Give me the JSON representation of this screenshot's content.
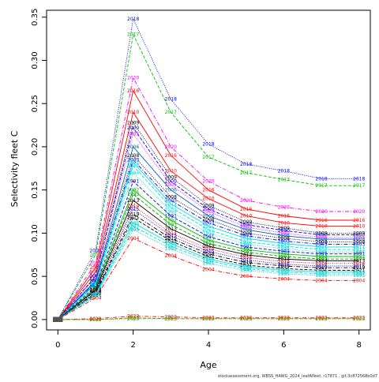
{
  "chart_data": {
    "type": "line",
    "xlabel": "Age",
    "ylabel": "Selectivity fleet C",
    "xlim": [
      -0.3,
      8.3
    ],
    "ylim": [
      -0.012,
      0.358
    ],
    "x": [
      0,
      1,
      2,
      3,
      4,
      5,
      6,
      7,
      8
    ],
    "x_ticks": [
      0,
      2,
      4,
      6,
      8
    ],
    "y_ticks": [
      0.0,
      0.05,
      0.1,
      0.15,
      0.2,
      0.25,
      0.3,
      0.35
    ],
    "y_tick_labels": [
      "0.00",
      "0.05",
      "0.10",
      "0.15",
      "0.20",
      "0.25",
      "0.30",
      "0.35"
    ],
    "grid": false,
    "legend": "none",
    "series": [
      {
        "name": "2018",
        "color": "#0000ff",
        "dash": "1,1.5",
        "values": [
          0.0,
          0.08,
          0.348,
          0.255,
          0.203,
          0.18,
          0.172,
          0.163,
          0.163
        ]
      },
      {
        "name": "2017",
        "color": "#00c000",
        "dash": "4,2",
        "values": [
          0.0,
          0.075,
          0.33,
          0.24,
          0.188,
          0.17,
          0.162,
          0.155,
          0.155
        ]
      },
      {
        "name": "2020",
        "color": "#ff00ff",
        "dash": "5,2,1,2",
        "values": [
          0.0,
          0.065,
          0.28,
          0.2,
          0.16,
          0.138,
          0.13,
          0.125,
          0.125
        ]
      },
      {
        "name": "2016",
        "color": "#ff0000",
        "dash": "",
        "values": [
          0.0,
          0.06,
          0.265,
          0.19,
          0.15,
          0.128,
          0.12,
          0.115,
          0.115
        ]
      },
      {
        "name": "2010",
        "color": "#ff0000",
        "dash": "",
        "values": [
          0.0,
          0.055,
          0.24,
          0.172,
          0.14,
          0.12,
          0.112,
          0.108,
          0.108
        ]
      },
      {
        "name": "2009",
        "color": "#000000",
        "dash": "1,1.5",
        "values": [
          0.0,
          0.05,
          0.228,
          0.165,
          0.132,
          0.113,
          0.106,
          0.1,
          0.1
        ]
      },
      {
        "name": "2000",
        "color": "#0000ff",
        "dash": "4,2",
        "values": [
          0.0,
          0.05,
          0.222,
          0.16,
          0.128,
          0.11,
          0.103,
          0.098,
          0.098
        ]
      },
      {
        "name": "2005",
        "color": "#ff00ff",
        "dash": "1,1.5",
        "values": [
          0.0,
          0.048,
          0.215,
          0.156,
          0.125,
          0.107,
          0.1,
          0.095,
          0.095
        ]
      },
      {
        "name": "2006",
        "color": "#0060c0",
        "dash": "",
        "values": [
          0.0,
          0.045,
          0.2,
          0.15,
          0.12,
          0.104,
          0.097,
          0.093,
          0.093
        ]
      },
      {
        "name": "2008",
        "color": "#000000",
        "dash": "1,1.5",
        "values": [
          0.0,
          0.044,
          0.19,
          0.142,
          0.116,
          0.1,
          0.094,
          0.09,
          0.09
        ]
      },
      {
        "name": "2003",
        "color": "#0000ff",
        "dash": "5,2,1,2",
        "values": [
          0.0,
          0.043,
          0.185,
          0.138,
          0.112,
          0.097,
          0.091,
          0.087,
          0.087
        ]
      },
      {
        "name": "2011",
        "color": "#00e0e0",
        "dash": "",
        "values": [
          0.0,
          0.042,
          0.182,
          0.134,
          0.108,
          0.094,
          0.088,
          0.084,
          0.084
        ]
      },
      {
        "name": "2012",
        "color": "#00e0e0",
        "dash": "4,2",
        "values": [
          0.0,
          0.041,
          0.178,
          0.13,
          0.104,
          0.09,
          0.085,
          0.081,
          0.081
        ]
      },
      {
        "name": "1994",
        "color": "#00e0e0",
        "dash": "1,1.5",
        "values": [
          0.0,
          0.04,
          0.17,
          0.125,
          0.1,
          0.087,
          0.082,
          0.078,
          0.078
        ]
      },
      {
        "name": "1991",
        "color": "#0000ff",
        "dash": "4,2",
        "values": [
          0.0,
          0.038,
          0.16,
          0.12,
          0.096,
          0.084,
          0.079,
          0.076,
          0.076
        ]
      },
      {
        "name": "1992",
        "color": "#00c000",
        "dash": "",
        "values": [
          0.0,
          0.036,
          0.15,
          0.115,
          0.092,
          0.081,
          0.076,
          0.073,
          0.073
        ]
      },
      {
        "name": "1993",
        "color": "#00a000",
        "dash": "4,2",
        "values": [
          0.0,
          0.035,
          0.145,
          0.11,
          0.088,
          0.078,
          0.073,
          0.07,
          0.07
        ]
      },
      {
        "name": "2013",
        "color": "#000000",
        "dash": "",
        "values": [
          0.0,
          0.034,
          0.138,
          0.105,
          0.085,
          0.075,
          0.07,
          0.068,
          0.068
        ]
      },
      {
        "name": "2014",
        "color": "#ff0000",
        "dash": "1,1.5",
        "values": [
          0.0,
          0.033,
          0.132,
          0.1,
          0.082,
          0.072,
          0.067,
          0.065,
          0.065
        ]
      },
      {
        "name": "2015",
        "color": "#0000ff",
        "dash": "1,1.5",
        "values": [
          0.0,
          0.032,
          0.128,
          0.097,
          0.079,
          0.069,
          0.064,
          0.062,
          0.062
        ]
      },
      {
        "name": "2019",
        "color": "#000000",
        "dash": "5,2,1,2",
        "values": [
          0.0,
          0.031,
          0.122,
          0.094,
          0.076,
          0.066,
          0.062,
          0.06,
          0.06
        ]
      },
      {
        "name": "2021",
        "color": "#000000",
        "dash": "4,2",
        "values": [
          0.0,
          0.03,
          0.118,
          0.091,
          0.073,
          0.063,
          0.059,
          0.057,
          0.057
        ]
      },
      {
        "name": "1996",
        "color": "#00e0e0",
        "dash": "",
        "values": [
          0.0,
          0.029,
          0.112,
          0.088,
          0.07,
          0.061,
          0.057,
          0.055,
          0.055
        ]
      },
      {
        "name": "1997",
        "color": "#00e0e0",
        "dash": "4,2",
        "values": [
          0.0,
          0.028,
          0.108,
          0.085,
          0.068,
          0.059,
          0.055,
          0.053,
          0.053
        ]
      },
      {
        "name": "1995",
        "color": "#00c0c0",
        "dash": "1,1.5",
        "values": [
          0.0,
          0.027,
          0.104,
          0.082,
          0.065,
          0.057,
          0.053,
          0.051,
          0.051
        ]
      },
      {
        "name": "2004",
        "color": "#ff0000",
        "dash": "5,2,1,2",
        "values": [
          0.0,
          0.025,
          0.094,
          0.074,
          0.058,
          0.05,
          0.047,
          0.045,
          0.045
        ]
      },
      {
        "name": "2022",
        "color": "#ff0000",
        "dash": "5,2,1,2",
        "values": [
          0.0,
          0.001,
          0.004,
          0.003,
          0.002,
          0.002,
          0.002,
          0.002,
          0.002
        ]
      },
      {
        "name": "2023",
        "color": "#00c000",
        "dash": "1,1.5",
        "values": [
          0.0,
          0.0,
          0.001,
          0.001,
          0.001,
          0.001,
          0.001,
          0.001,
          0.001
        ]
      },
      {
        "name": "2023",
        "color": "#808000",
        "dash": "4,2",
        "values": [
          0.0,
          0.0,
          0.002,
          0.001,
          0.001,
          0.001,
          0.001,
          0.001,
          0.001
        ]
      }
    ]
  },
  "footnote": "stockassessment.org, WBSS_HAWG_2024_leafAfleet, r17871 , git:3c872568b0d7"
}
